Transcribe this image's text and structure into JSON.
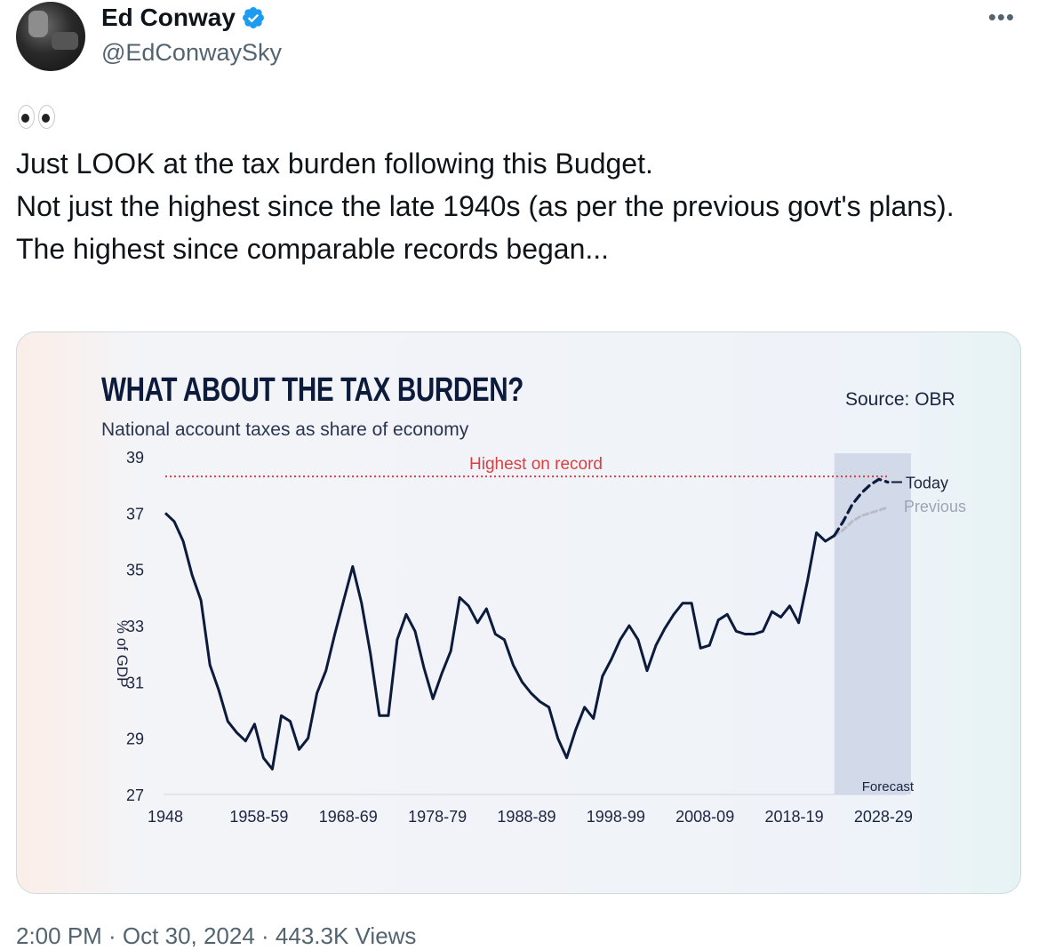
{
  "author": {
    "display_name": "Ed Conway",
    "handle": "@EdConwaySky",
    "verified": true,
    "verified_color": "#1d9bf0"
  },
  "more_icon": "more-horizontal-icon",
  "tweet": {
    "emoji": "eyes-emoji",
    "lines": [
      "Just LOOK at the tax burden following this Budget.",
      "Not just the highest since the late 1940s (as per the previous govt's plans).",
      "The highest since comparable records began..."
    ]
  },
  "chart": {
    "title": "WHAT ABOUT THE TAX BURDEN?",
    "subtitle": "National account taxes as share of economy",
    "source": "Source: OBR",
    "highest_label": "Highest on record",
    "forecast_label": "Forecast",
    "today_label": "Today",
    "previous_label": "Previous",
    "colors": {
      "line": "#0c1a3b",
      "record": "#d94040",
      "previous": "#b8bcc6",
      "forecast_band": "#c8d0e2"
    }
  },
  "chart_data": {
    "type": "line",
    "title": "WHAT ABOUT THE TAX BURDEN?",
    "subtitle": "National account taxes as share of economy",
    "ylabel": "% of GDP",
    "xlabel": "",
    "ylim": [
      27,
      39
    ],
    "yticks": [
      27,
      29,
      31,
      33,
      35,
      37,
      39
    ],
    "xticks": [
      "1948",
      "1958-59",
      "1968-69",
      "1978-79",
      "1988-89",
      "1998-99",
      "2008-09",
      "2018-19",
      "2028-29"
    ],
    "xlim": [
      1948,
      2031
    ],
    "highest_on_record": 38.3,
    "forecast_start": 2024,
    "series": [
      {
        "name": "",
        "x": [
          1948,
          1949,
          1950,
          1951,
          1952,
          1953,
          1954,
          1955,
          1956,
          1957,
          1958,
          1959,
          1960,
          1961,
          1962,
          1963,
          1964,
          1965,
          1966,
          1967,
          1968,
          1969,
          1970,
          1971,
          1972,
          1973,
          1974,
          1975,
          1976,
          1977,
          1978,
          1979,
          1980,
          1981,
          1982,
          1983,
          1984,
          1985,
          1986,
          1987,
          1988,
          1989,
          1990,
          1991,
          1992,
          1993,
          1994,
          1995,
          1996,
          1997,
          1998,
          1999,
          2000,
          2001,
          2002,
          2003,
          2004,
          2005,
          2006,
          2007,
          2008,
          2009,
          2010,
          2011,
          2012,
          2013,
          2014,
          2015,
          2016,
          2017,
          2018,
          2019,
          2020,
          2021,
          2022,
          2023
        ],
        "values": [
          37.0,
          36.7,
          36.0,
          34.8,
          33.9,
          31.6,
          30.7,
          29.6,
          29.2,
          28.9,
          29.5,
          28.3,
          27.9,
          29.8,
          29.6,
          28.6,
          29.0,
          30.6,
          31.4,
          32.7,
          33.9,
          35.1,
          33.8,
          32.0,
          29.8,
          29.8,
          32.5,
          33.4,
          32.8,
          31.5,
          30.4,
          31.3,
          32.1,
          34.0,
          33.7,
          33.1,
          33.6,
          32.7,
          32.5,
          31.6,
          31.0,
          30.6,
          30.3,
          30.1,
          29.0,
          28.3,
          29.3,
          30.1,
          29.7,
          31.2,
          31.8,
          32.5,
          33.0,
          32.5,
          31.4,
          32.3,
          32.9,
          33.4,
          33.8,
          33.8,
          32.2,
          32.3,
          33.2,
          33.4,
          32.8,
          32.7,
          32.7,
          32.8,
          33.5,
          33.3,
          33.7,
          33.1,
          34.6,
          36.3,
          36.0,
          36.2
        ]
      },
      {
        "name": "Today",
        "x": [
          2023,
          2024,
          2025,
          2026,
          2027,
          2028,
          2029
        ],
        "values": [
          36.2,
          36.7,
          37.3,
          37.7,
          38.0,
          38.2,
          38.1
        ]
      },
      {
        "name": "Previous",
        "x": [
          2023,
          2024,
          2025,
          2026,
          2027,
          2028,
          2029
        ],
        "values": [
          36.2,
          36.4,
          36.7,
          36.9,
          37.0,
          37.1,
          37.2
        ]
      }
    ],
    "grid": false,
    "legend": "inline-end-labels"
  },
  "timestamp_peek": "2:00 PM · Oct 30, 2024 · 443.3K Views"
}
